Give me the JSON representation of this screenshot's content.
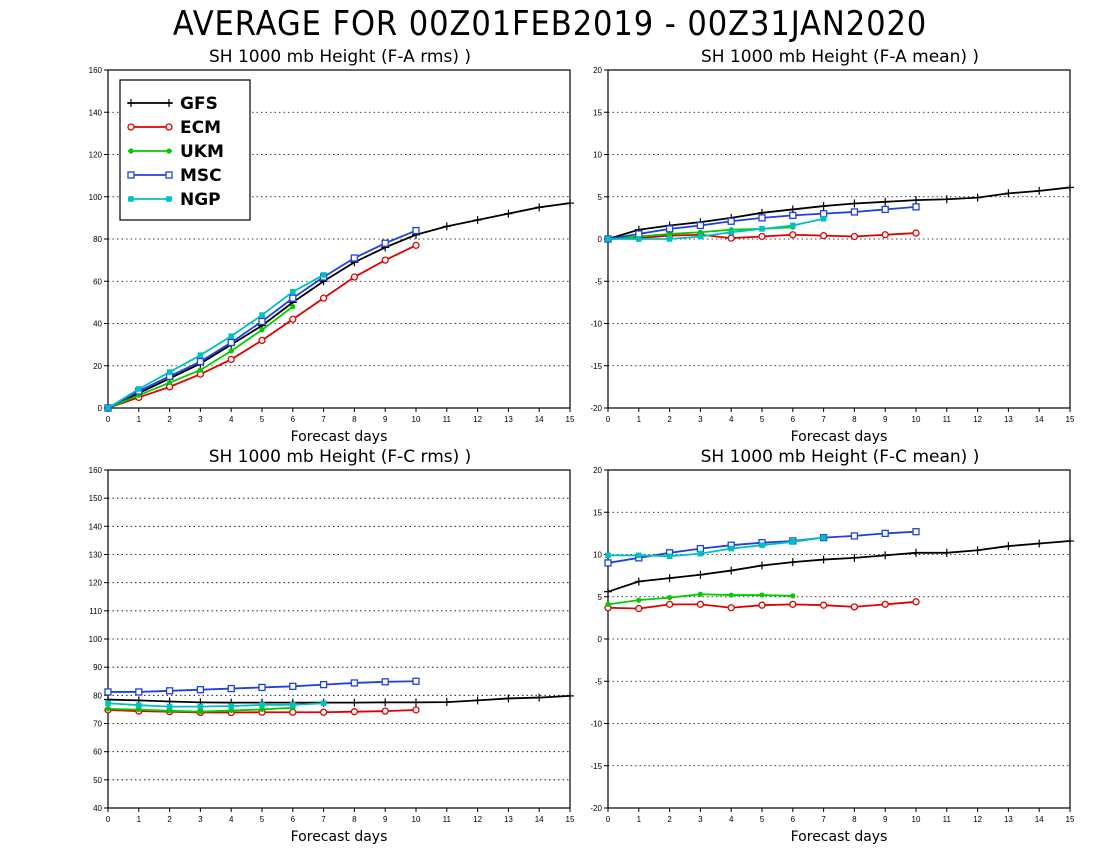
{
  "title": "AVERAGE FOR 00Z01FEB2019 - 00Z31JAN2020",
  "legend": [
    {
      "name": "GFS",
      "color": "#000000",
      "marker": "plus"
    },
    {
      "name": "ECM",
      "color": "#e00000",
      "marker": "circle"
    },
    {
      "name": "UKM",
      "color": "#00cc00",
      "marker": "dot"
    },
    {
      "name": "MSC",
      "color": "#2040e0",
      "marker": "square"
    },
    {
      "name": "NGP",
      "color": "#00c0c0",
      "marker": "filled-square"
    }
  ],
  "chart_data": [
    {
      "type": "line",
      "title": "SH 1000 mb Height (F-A rms) )",
      "xlabel": "Forecast days",
      "xlim": [
        0,
        15
      ],
      "ylim": [
        0,
        160
      ],
      "yticks": [
        0,
        20,
        40,
        60,
        80,
        100,
        120,
        140,
        160
      ],
      "grid": true,
      "legend": "top-left",
      "series": [
        {
          "name": "GFS",
          "x": [
            0,
            1,
            2,
            3,
            4,
            5,
            6,
            7,
            8,
            9,
            10,
            11,
            12,
            13,
            14,
            15
          ],
          "values": [
            0,
            7,
            14,
            21,
            30,
            39,
            50,
            60,
            69,
            76,
            82,
            86,
            89,
            92,
            95,
            97
          ]
        },
        {
          "name": "ECM",
          "x": [
            0,
            1,
            2,
            3,
            4,
            5,
            6,
            7,
            8,
            9,
            10
          ],
          "values": [
            0,
            5,
            10,
            16,
            23,
            32,
            42,
            52,
            62,
            70,
            77
          ]
        },
        {
          "name": "UKM",
          "x": [
            0,
            1,
            2,
            3,
            4,
            5,
            6
          ],
          "values": [
            0,
            6,
            12,
            18,
            27,
            37,
            48
          ]
        },
        {
          "name": "MSC",
          "x": [
            0,
            1,
            2,
            3,
            4,
            5,
            6,
            7,
            8,
            9,
            10
          ],
          "values": [
            0,
            8,
            15,
            22,
            31,
            41,
            52,
            62,
            71,
            78,
            84
          ]
        },
        {
          "name": "NGP",
          "x": [
            0,
            1,
            2,
            3,
            4,
            5,
            6,
            7
          ],
          "values": [
            0,
            9,
            17,
            25,
            34,
            44,
            55,
            63
          ]
        }
      ]
    },
    {
      "type": "line",
      "title": "SH 1000 mb Height (F-A mean) )",
      "xlabel": "Forecast days",
      "xlim": [
        0,
        15
      ],
      "ylim": [
        -20,
        20
      ],
      "yticks": [
        -20,
        -15,
        -10,
        -5,
        0,
        5,
        10,
        15,
        20
      ],
      "grid": true,
      "series": [
        {
          "name": "GFS",
          "x": [
            0,
            1,
            2,
            3,
            4,
            5,
            6,
            7,
            8,
            9,
            10,
            11,
            12,
            13,
            14,
            15
          ],
          "values": [
            0,
            1.1,
            1.6,
            2.0,
            2.5,
            3.1,
            3.5,
            3.9,
            4.2,
            4.4,
            4.6,
            4.7,
            4.9,
            5.4,
            5.7,
            6.1
          ]
        },
        {
          "name": "ECM",
          "x": [
            0,
            1,
            2,
            3,
            4,
            5,
            6,
            7,
            8,
            9,
            10
          ],
          "values": [
            0,
            0.1,
            0.4,
            0.5,
            0.1,
            0.3,
            0.5,
            0.4,
            0.3,
            0.5,
            0.7
          ]
        },
        {
          "name": "UKM",
          "x": [
            0,
            1,
            2,
            3,
            4,
            5,
            6
          ],
          "values": [
            0,
            0.3,
            0.6,
            0.8,
            1.1,
            1.2,
            1.4
          ]
        },
        {
          "name": "MSC",
          "x": [
            0,
            1,
            2,
            3,
            4,
            5,
            6,
            7,
            8,
            9,
            10
          ],
          "values": [
            0,
            0.6,
            1.2,
            1.6,
            2.1,
            2.5,
            2.8,
            3.0,
            3.2,
            3.5,
            3.8
          ]
        },
        {
          "name": "NGP",
          "x": [
            0,
            1,
            2,
            3,
            4,
            5,
            6,
            7
          ],
          "values": [
            0,
            0,
            0,
            0.3,
            0.8,
            1.2,
            1.6,
            2.4
          ]
        }
      ]
    },
    {
      "type": "line",
      "title": "SH 1000 mb Height (F-C rms) )",
      "xlabel": "Forecast days",
      "xlim": [
        0,
        15
      ],
      "ylim": [
        40,
        160
      ],
      "yticks": [
        40,
        50,
        60,
        70,
        80,
        90,
        100,
        110,
        120,
        130,
        140,
        150,
        160
      ],
      "grid": true,
      "series": [
        {
          "name": "GFS",
          "x": [
            0,
            1,
            2,
            3,
            4,
            5,
            6,
            7,
            8,
            9,
            10,
            11,
            12,
            13,
            14,
            15
          ],
          "values": [
            78.5,
            78.2,
            77.8,
            77.5,
            77.4,
            77.4,
            77.4,
            77.4,
            77.4,
            77.5,
            77.5,
            77.6,
            78.2,
            78.9,
            79.2,
            79.8
          ]
        },
        {
          "name": "ECM",
          "x": [
            0,
            1,
            2,
            3,
            4,
            5,
            6,
            7,
            8,
            9,
            10
          ],
          "values": [
            74.8,
            74.4,
            74.2,
            73.9,
            73.9,
            74.0,
            74.0,
            74.0,
            74.2,
            74.4,
            74.8
          ]
        },
        {
          "name": "UKM",
          "x": [
            0,
            1,
            2,
            3,
            4,
            5,
            6
          ],
          "values": [
            75.2,
            74.9,
            74.5,
            74.2,
            74.6,
            75.0,
            75.6
          ]
        },
        {
          "name": "MSC",
          "x": [
            0,
            1,
            2,
            3,
            4,
            5,
            6,
            7,
            8,
            9,
            10
          ],
          "values": [
            81.2,
            81.2,
            81.6,
            82.0,
            82.4,
            82.8,
            83.2,
            83.8,
            84.4,
            84.8,
            85.0
          ]
        },
        {
          "name": "NGP",
          "x": [
            0,
            1,
            2,
            3,
            4,
            5,
            6,
            7
          ],
          "values": [
            77.2,
            76.5,
            76.0,
            76.0,
            76.2,
            76.6,
            76.6,
            77.2
          ]
        }
      ]
    },
    {
      "type": "line",
      "title": "SH 1000 mb Height (F-C mean) )",
      "xlabel": "Forecast days",
      "xlim": [
        0,
        15
      ],
      "ylim": [
        -20,
        20
      ],
      "yticks": [
        -20,
        -15,
        -10,
        -5,
        0,
        5,
        10,
        15,
        20
      ],
      "grid": true,
      "series": [
        {
          "name": "GFS",
          "x": [
            0,
            1,
            2,
            3,
            4,
            5,
            6,
            7,
            8,
            9,
            10,
            11,
            12,
            13,
            14,
            15
          ],
          "values": [
            5.6,
            6.8,
            7.2,
            7.6,
            8.1,
            8.7,
            9.1,
            9.4,
            9.6,
            9.9,
            10.2,
            10.2,
            10.5,
            11.0,
            11.3,
            11.6
          ]
        },
        {
          "name": "ECM",
          "x": [
            0,
            1,
            2,
            3,
            4,
            5,
            6,
            7,
            8,
            9,
            10
          ],
          "values": [
            3.7,
            3.6,
            4.1,
            4.1,
            3.7,
            4.0,
            4.1,
            4.0,
            3.8,
            4.1,
            4.4
          ]
        },
        {
          "name": "UKM",
          "x": [
            0,
            1,
            2,
            3,
            4,
            5,
            6
          ],
          "values": [
            4.1,
            4.6,
            4.9,
            5.3,
            5.2,
            5.2,
            5.1
          ]
        },
        {
          "name": "MSC",
          "x": [
            0,
            1,
            2,
            3,
            4,
            5,
            6,
            7,
            8,
            9,
            10
          ],
          "values": [
            9.0,
            9.6,
            10.2,
            10.7,
            11.1,
            11.4,
            11.6,
            12.0,
            12.2,
            12.5,
            12.7
          ]
        },
        {
          "name": "NGP",
          "x": [
            0,
            1,
            2,
            3,
            4,
            5,
            6,
            7
          ],
          "values": [
            9.9,
            9.9,
            9.8,
            10.1,
            10.7,
            11.1,
            11.5,
            12.0
          ]
        }
      ]
    }
  ]
}
